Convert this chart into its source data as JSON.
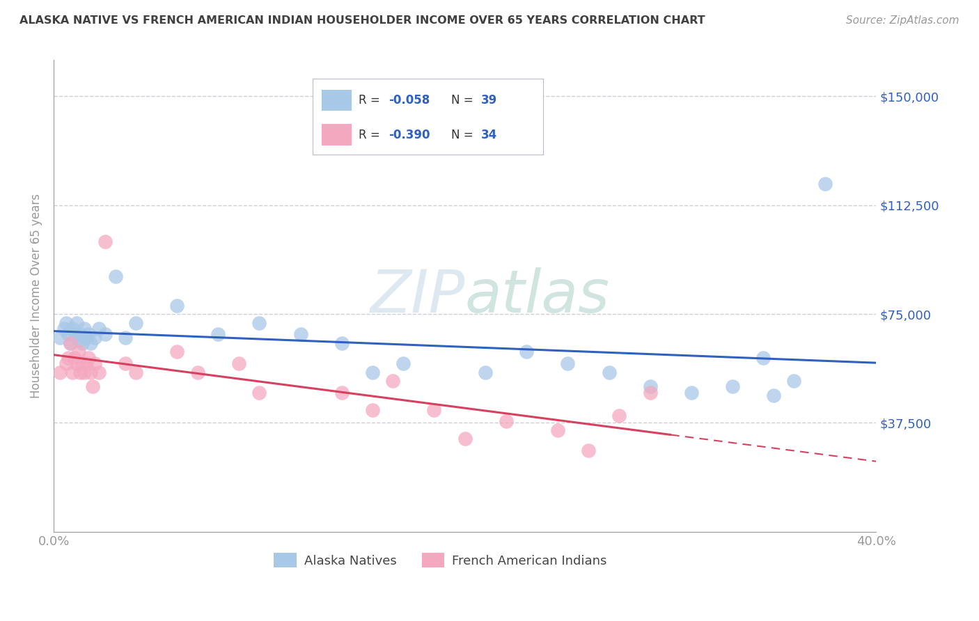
{
  "title": "ALASKA NATIVE VS FRENCH AMERICAN INDIAN HOUSEHOLDER INCOME OVER 65 YEARS CORRELATION CHART",
  "source": "Source: ZipAtlas.com",
  "ylabel": "Householder Income Over 65 years",
  "xlim": [
    0.0,
    0.4
  ],
  "ylim": [
    0,
    162500
  ],
  "xticks": [
    0.0,
    0.05,
    0.1,
    0.15,
    0.2,
    0.25,
    0.3,
    0.35,
    0.4
  ],
  "xticklabels": [
    "0.0%",
    "",
    "",
    "",
    "",
    "",
    "",
    "",
    "40.0%"
  ],
  "yticks": [
    0,
    37500,
    75000,
    112500,
    150000
  ],
  "yticklabels_right": [
    "",
    "$37,500",
    "$75,000",
    "$112,500",
    "$150,000"
  ],
  "legend_r1": "-0.058",
  "legend_n1": "39",
  "legend_r2": "-0.390",
  "legend_n2": "34",
  "alaska_color": "#a8c8e8",
  "french_color": "#f4a8c0",
  "alaska_line_color": "#3060c0",
  "french_line_color": "#d84060",
  "label1": "Alaska Natives",
  "label2": "French American Indians",
  "background_color": "#ffffff",
  "grid_color": "#c8c8d8",
  "title_color": "#404040",
  "axis_color": "#999999",
  "value_color": "#3060c0",
  "alaska_x": [
    0.003,
    0.005,
    0.006,
    0.007,
    0.008,
    0.009,
    0.01,
    0.011,
    0.012,
    0.013,
    0.014,
    0.015,
    0.016,
    0.017,
    0.018,
    0.02,
    0.022,
    0.025,
    0.03,
    0.035,
    0.04,
    0.06,
    0.08,
    0.1,
    0.12,
    0.14,
    0.155,
    0.17,
    0.21,
    0.23,
    0.25,
    0.27,
    0.29,
    0.31,
    0.33,
    0.345,
    0.35,
    0.36,
    0.375
  ],
  "alaska_y": [
    67000,
    70000,
    72000,
    68000,
    65000,
    70000,
    68000,
    72000,
    66000,
    68000,
    65000,
    70000,
    67000,
    68000,
    65000,
    67000,
    70000,
    68000,
    88000,
    67000,
    72000,
    78000,
    68000,
    72000,
    68000,
    65000,
    55000,
    58000,
    55000,
    62000,
    58000,
    55000,
    50000,
    48000,
    50000,
    60000,
    47000,
    52000,
    120000
  ],
  "french_x": [
    0.003,
    0.006,
    0.007,
    0.008,
    0.009,
    0.01,
    0.011,
    0.012,
    0.013,
    0.014,
    0.015,
    0.016,
    0.017,
    0.018,
    0.019,
    0.02,
    0.022,
    0.025,
    0.035,
    0.04,
    0.06,
    0.07,
    0.09,
    0.1,
    0.14,
    0.155,
    0.165,
    0.185,
    0.2,
    0.22,
    0.245,
    0.26,
    0.275,
    0.29
  ],
  "french_y": [
    55000,
    58000,
    60000,
    65000,
    55000,
    60000,
    58000,
    62000,
    55000,
    58000,
    55000,
    58000,
    60000,
    55000,
    50000,
    58000,
    55000,
    100000,
    58000,
    55000,
    62000,
    55000,
    58000,
    48000,
    48000,
    42000,
    52000,
    42000,
    32000,
    38000,
    35000,
    28000,
    40000,
    48000
  ]
}
